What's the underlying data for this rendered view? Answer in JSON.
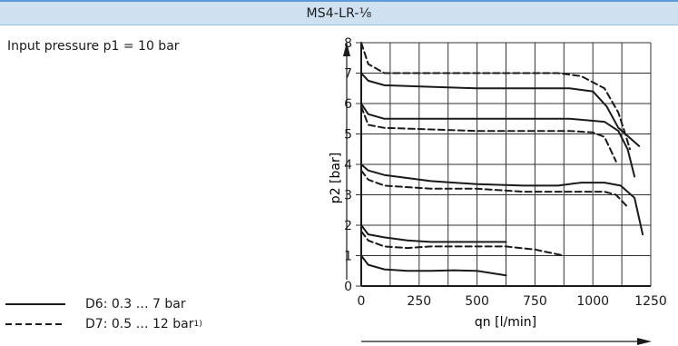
{
  "header": {
    "title": "MS4-LR-⅛"
  },
  "condition": "Input pressure p1 = 10 bar",
  "legend": [
    {
      "key": "D6",
      "label": "D6: 0.3 … 7 bar",
      "footnote": "",
      "style": "solid"
    },
    {
      "key": "D7",
      "label": "D7: 0.5 … 12 bar",
      "footnote": "1)",
      "style": "dashed"
    }
  ],
  "colors": {
    "header_bg": "#cfe1f1",
    "header_border": "#5b9bd5",
    "line": "#1a1a1a",
    "grid": "#333333"
  },
  "chart_data": {
    "type": "line",
    "title": "",
    "xlabel": "qn [l/min]",
    "ylabel": "p2 [bar]",
    "xlim": [
      0,
      1250
    ],
    "ylim": [
      0,
      8
    ],
    "xticks": [
      0,
      250,
      500,
      750,
      1000,
      1250
    ],
    "yticks": [
      0,
      1,
      2,
      3,
      4,
      5,
      6,
      7,
      8
    ],
    "grid": true,
    "x_gridlines": [
      0,
      125,
      250,
      375,
      500,
      625,
      750,
      875,
      1000,
      1125,
      1250
    ],
    "series": [
      {
        "legend_key": "D6",
        "style": "solid",
        "x": [
          0,
          30,
          100,
          200,
          300,
          400,
          500,
          625
        ],
        "y": [
          1.0,
          0.7,
          0.55,
          0.5,
          0.5,
          0.52,
          0.5,
          0.35
        ]
      },
      {
        "legend_key": "D6",
        "style": "solid",
        "x": [
          0,
          30,
          100,
          200,
          300,
          400,
          500,
          625
        ],
        "y": [
          2.0,
          1.7,
          1.6,
          1.5,
          1.45,
          1.45,
          1.45,
          1.45
        ]
      },
      {
        "legend_key": "D6",
        "style": "solid",
        "x": [
          0,
          30,
          100,
          300,
          500,
          700,
          850,
          950,
          1050,
          1120,
          1180,
          1215
        ],
        "y": [
          4.0,
          3.8,
          3.65,
          3.45,
          3.35,
          3.3,
          3.3,
          3.4,
          3.4,
          3.3,
          2.9,
          1.7
        ]
      },
      {
        "legend_key": "D6",
        "style": "solid",
        "x": [
          0,
          30,
          100,
          300,
          500,
          700,
          900,
          1050,
          1110,
          1150,
          1180
        ],
        "y": [
          6.0,
          5.65,
          5.5,
          5.5,
          5.5,
          5.5,
          5.5,
          5.4,
          5.1,
          4.5,
          3.6
        ]
      },
      {
        "legend_key": "D6",
        "style": "solid",
        "x": [
          0,
          30,
          100,
          300,
          500,
          700,
          900,
          1000,
          1060,
          1110,
          1200
        ],
        "y": [
          7.0,
          6.75,
          6.6,
          6.55,
          6.5,
          6.5,
          6.5,
          6.4,
          5.9,
          5.2,
          4.6
        ]
      },
      {
        "legend_key": "D7",
        "style": "dashed",
        "x": [
          0,
          30,
          100,
          200,
          300,
          400,
          500,
          625,
          750,
          875
        ],
        "y": [
          1.8,
          1.5,
          1.3,
          1.25,
          1.3,
          1.3,
          1.3,
          1.3,
          1.2,
          1.0
        ]
      },
      {
        "legend_key": "D7",
        "style": "dashed",
        "x": [
          0,
          30,
          100,
          300,
          500,
          700,
          850,
          950,
          1050,
          1100,
          1150
        ],
        "y": [
          3.8,
          3.5,
          3.3,
          3.2,
          3.2,
          3.1,
          3.1,
          3.1,
          3.1,
          3.0,
          2.6
        ]
      },
      {
        "legend_key": "D7",
        "style": "dashed",
        "x": [
          0,
          30,
          100,
          300,
          500,
          700,
          900,
          1000,
          1050,
          1100
        ],
        "y": [
          5.9,
          5.3,
          5.2,
          5.15,
          5.1,
          5.1,
          5.1,
          5.05,
          4.9,
          4.1
        ]
      },
      {
        "legend_key": "D7",
        "style": "dashed",
        "x": [
          0,
          30,
          100,
          300,
          500,
          700,
          850,
          950,
          1050,
          1110,
          1140,
          1160
        ],
        "y": [
          8.0,
          7.3,
          7.0,
          7.0,
          7.0,
          7.0,
          7.0,
          6.9,
          6.5,
          5.7,
          5.0,
          4.5
        ]
      }
    ]
  }
}
